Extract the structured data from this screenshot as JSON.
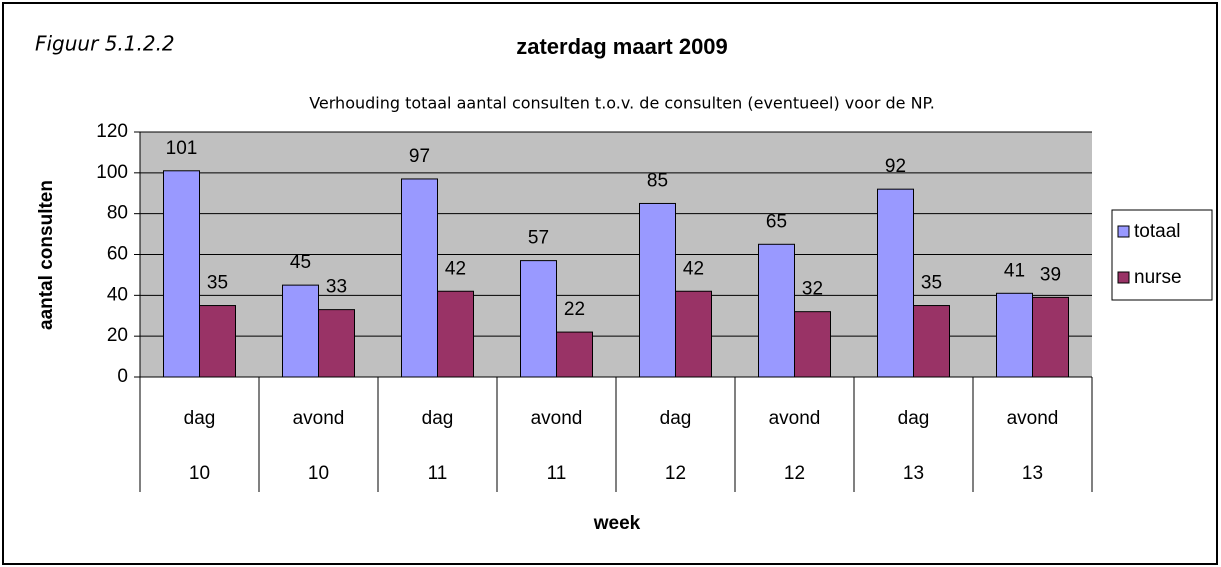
{
  "chart_data": {
    "type": "bar",
    "figure_label": "Figuur 5.1.2.2",
    "title": "zaterdag maart 2009",
    "subtitle": "Verhouding totaal aantal consulten t.o.v. de consulten (eventueel) voor de NP.",
    "y_label": "aantal consulten",
    "x_label": "week",
    "categories": [
      "dag",
      "avond",
      "dag",
      "avond",
      "dag",
      "avond",
      "dag",
      "avond"
    ],
    "category_groups": [
      "10",
      "10",
      "11",
      "11",
      "12",
      "12",
      "13",
      "13"
    ],
    "series": [
      {
        "name": "totaal",
        "color": "#9999ff",
        "values": [
          101,
          45,
          97,
          57,
          85,
          65,
          92,
          41
        ]
      },
      {
        "name": "nurse",
        "color": "#993366",
        "values": [
          35,
          33,
          42,
          22,
          42,
          32,
          35,
          39
        ]
      }
    ],
    "ylim": [
      0,
      120
    ],
    "yticks": [
      0,
      20,
      40,
      60,
      80,
      100,
      120
    ],
    "grid": true,
    "legend": "right"
  }
}
